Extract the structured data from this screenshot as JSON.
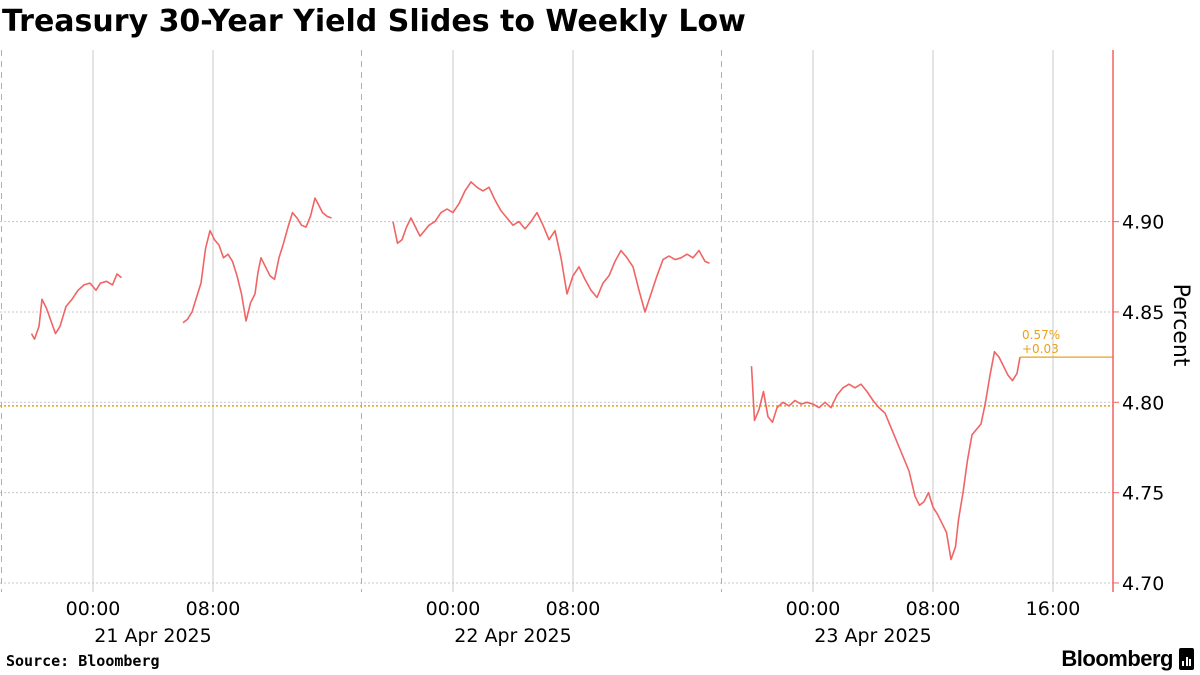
{
  "title": "Treasury 30-Year Yield Slides to Weekly Low",
  "source": "Source: Bloomberg",
  "brand": "Bloomberg",
  "colors": {
    "line": "#f06464",
    "reference": "#e8a21c",
    "axis": "#f06464",
    "grid": "#c8c8c8",
    "text": "#000000"
  },
  "chart_data": {
    "type": "line",
    "title": "Treasury 30-Year Yield Slides to Weekly Low",
    "ylabel": "Percent",
    "ylim": [
      4.695,
      4.995
    ],
    "xlim_hours": [
      -6.1,
      20.7
    ],
    "yticks": [
      4.7,
      4.75,
      4.8,
      4.85,
      4.9
    ],
    "ytick_labels": [
      "4.70",
      "4.75",
      "4.80",
      "4.85",
      "4.90"
    ],
    "xticks_hours": [
      0,
      8,
      16
    ],
    "xtick_labels": [
      "00:00",
      "08:00",
      "16:00"
    ],
    "days": [
      "21 Apr 2025",
      "22 Apr 2025",
      "23 Apr 2025"
    ],
    "reference_value": 4.798,
    "last_value": 4.825,
    "change_pct_label": "0.57%",
    "change_abs_label": "+0.03",
    "legend": "none",
    "grid": true,
    "series": [
      {
        "segments": [
          {
            "day": 0,
            "points": [
              [
                -4.1,
                4.838
              ],
              [
                -3.9,
                4.835
              ],
              [
                -3.6,
                4.842
              ],
              [
                -3.4,
                4.857
              ],
              [
                -3.1,
                4.852
              ],
              [
                -2.8,
                4.845
              ],
              [
                -2.5,
                4.838
              ],
              [
                -2.2,
                4.842
              ],
              [
                -1.8,
                4.853
              ],
              [
                -1.4,
                4.857
              ],
              [
                -1.0,
                4.862
              ],
              [
                -0.6,
                4.865
              ],
              [
                -0.2,
                4.866
              ],
              [
                0.2,
                4.862
              ],
              [
                0.5,
                4.866
              ],
              [
                0.9,
                4.867
              ],
              [
                1.3,
                4.865
              ],
              [
                1.6,
                4.871
              ],
              [
                1.9,
                4.869
              ]
            ]
          },
          {
            "day": 0,
            "points": [
              [
                6.0,
                4.844
              ],
              [
                6.3,
                4.846
              ],
              [
                6.6,
                4.85
              ],
              [
                6.9,
                4.858
              ],
              [
                7.2,
                4.866
              ],
              [
                7.5,
                4.885
              ],
              [
                7.8,
                4.895
              ],
              [
                8.1,
                4.89
              ],
              [
                8.4,
                4.887
              ],
              [
                8.7,
                4.88
              ],
              [
                9.0,
                4.882
              ],
              [
                9.3,
                4.878
              ],
              [
                9.6,
                4.87
              ],
              [
                9.9,
                4.86
              ],
              [
                10.2,
                4.845
              ],
              [
                10.5,
                4.855
              ],
              [
                10.8,
                4.86
              ],
              [
                11.0,
                4.872
              ],
              [
                11.2,
                4.88
              ],
              [
                11.5,
                4.875
              ],
              [
                11.8,
                4.87
              ],
              [
                12.1,
                4.868
              ],
              [
                12.4,
                4.88
              ],
              [
                12.7,
                4.888
              ],
              [
                13.0,
                4.897
              ],
              [
                13.3,
                4.905
              ],
              [
                13.6,
                4.902
              ],
              [
                13.9,
                4.898
              ],
              [
                14.2,
                4.897
              ],
              [
                14.5,
                4.903
              ],
              [
                14.8,
                4.913
              ],
              [
                15.0,
                4.91
              ],
              [
                15.3,
                4.905
              ],
              [
                15.6,
                4.903
              ],
              [
                15.9,
                4.902
              ]
            ]
          },
          {
            "day": 1,
            "points": [
              [
                -4.0,
                4.9
              ],
              [
                -3.7,
                4.888
              ],
              [
                -3.4,
                4.89
              ],
              [
                -3.1,
                4.897
              ],
              [
                -2.8,
                4.902
              ],
              [
                -2.5,
                4.897
              ],
              [
                -2.2,
                4.892
              ],
              [
                -1.9,
                4.895
              ],
              [
                -1.6,
                4.898
              ],
              [
                -1.2,
                4.9
              ],
              [
                -0.8,
                4.905
              ],
              [
                -0.4,
                4.907
              ],
              [
                0.0,
                4.905
              ],
              [
                0.4,
                4.91
              ],
              [
                0.8,
                4.917
              ],
              [
                1.2,
                4.922
              ],
              [
                1.6,
                4.919
              ],
              [
                2.0,
                4.917
              ],
              [
                2.4,
                4.919
              ],
              [
                2.8,
                4.912
              ],
              [
                3.2,
                4.906
              ],
              [
                3.6,
                4.902
              ],
              [
                4.0,
                4.898
              ],
              [
                4.4,
                4.9
              ],
              [
                4.8,
                4.896
              ],
              [
                5.2,
                4.9
              ],
              [
                5.6,
                4.905
              ],
              [
                6.0,
                4.898
              ],
              [
                6.4,
                4.89
              ],
              [
                6.8,
                4.895
              ],
              [
                7.2,
                4.88
              ],
              [
                7.6,
                4.86
              ],
              [
                8.0,
                4.87
              ],
              [
                8.4,
                4.875
              ],
              [
                8.8,
                4.868
              ],
              [
                9.2,
                4.862
              ],
              [
                9.6,
                4.858
              ],
              [
                10.0,
                4.866
              ],
              [
                10.4,
                4.87
              ],
              [
                10.8,
                4.878
              ],
              [
                11.2,
                4.884
              ],
              [
                11.6,
                4.88
              ],
              [
                12.0,
                4.875
              ],
              [
                12.4,
                4.862
              ],
              [
                12.8,
                4.85
              ],
              [
                13.2,
                4.86
              ],
              [
                13.6,
                4.87
              ],
              [
                14.0,
                4.879
              ],
              [
                14.4,
                4.881
              ],
              [
                14.8,
                4.879
              ],
              [
                15.2,
                4.88
              ],
              [
                15.6,
                4.882
              ],
              [
                16.0,
                4.88
              ],
              [
                16.4,
                4.884
              ],
              [
                16.8,
                4.878
              ],
              [
                17.1,
                4.877
              ]
            ]
          },
          {
            "day": 2,
            "points": [
              [
                -4.1,
                4.82
              ],
              [
                -3.9,
                4.79
              ],
              [
                -3.6,
                4.796
              ],
              [
                -3.3,
                4.806
              ],
              [
                -3.0,
                4.792
              ],
              [
                -2.7,
                4.789
              ],
              [
                -2.4,
                4.797
              ],
              [
                -2.0,
                4.8
              ],
              [
                -1.6,
                4.798
              ],
              [
                -1.2,
                4.801
              ],
              [
                -0.8,
                4.799
              ],
              [
                -0.4,
                4.8
              ],
              [
                0.0,
                4.799
              ],
              [
                0.4,
                4.797
              ],
              [
                0.8,
                4.8
              ],
              [
                1.2,
                4.797
              ],
              [
                1.6,
                4.804
              ],
              [
                2.0,
                4.808
              ],
              [
                2.4,
                4.81
              ],
              [
                2.8,
                4.808
              ],
              [
                3.2,
                4.81
              ],
              [
                3.6,
                4.806
              ],
              [
                4.0,
                4.801
              ],
              [
                4.4,
                4.797
              ],
              [
                4.8,
                4.794
              ],
              [
                5.2,
                4.786
              ],
              [
                5.6,
                4.778
              ],
              [
                6.0,
                4.77
              ],
              [
                6.4,
                4.762
              ],
              [
                6.8,
                4.748
              ],
              [
                7.1,
                4.743
              ],
              [
                7.4,
                4.745
              ],
              [
                7.7,
                4.75
              ],
              [
                8.0,
                4.742
              ],
              [
                8.3,
                4.738
              ],
              [
                8.6,
                4.733
              ],
              [
                8.9,
                4.728
              ],
              [
                9.2,
                4.713
              ],
              [
                9.5,
                4.72
              ],
              [
                9.7,
                4.735
              ],
              [
                10.0,
                4.75
              ],
              [
                10.3,
                4.768
              ],
              [
                10.6,
                4.782
              ],
              [
                10.9,
                4.785
              ],
              [
                11.2,
                4.788
              ],
              [
                11.5,
                4.8
              ],
              [
                11.8,
                4.815
              ],
              [
                12.1,
                4.828
              ],
              [
                12.4,
                4.825
              ],
              [
                12.7,
                4.82
              ],
              [
                13.0,
                4.815
              ],
              [
                13.3,
                4.812
              ],
              [
                13.6,
                4.816
              ],
              [
                13.8,
                4.825
              ]
            ]
          }
        ]
      }
    ]
  }
}
